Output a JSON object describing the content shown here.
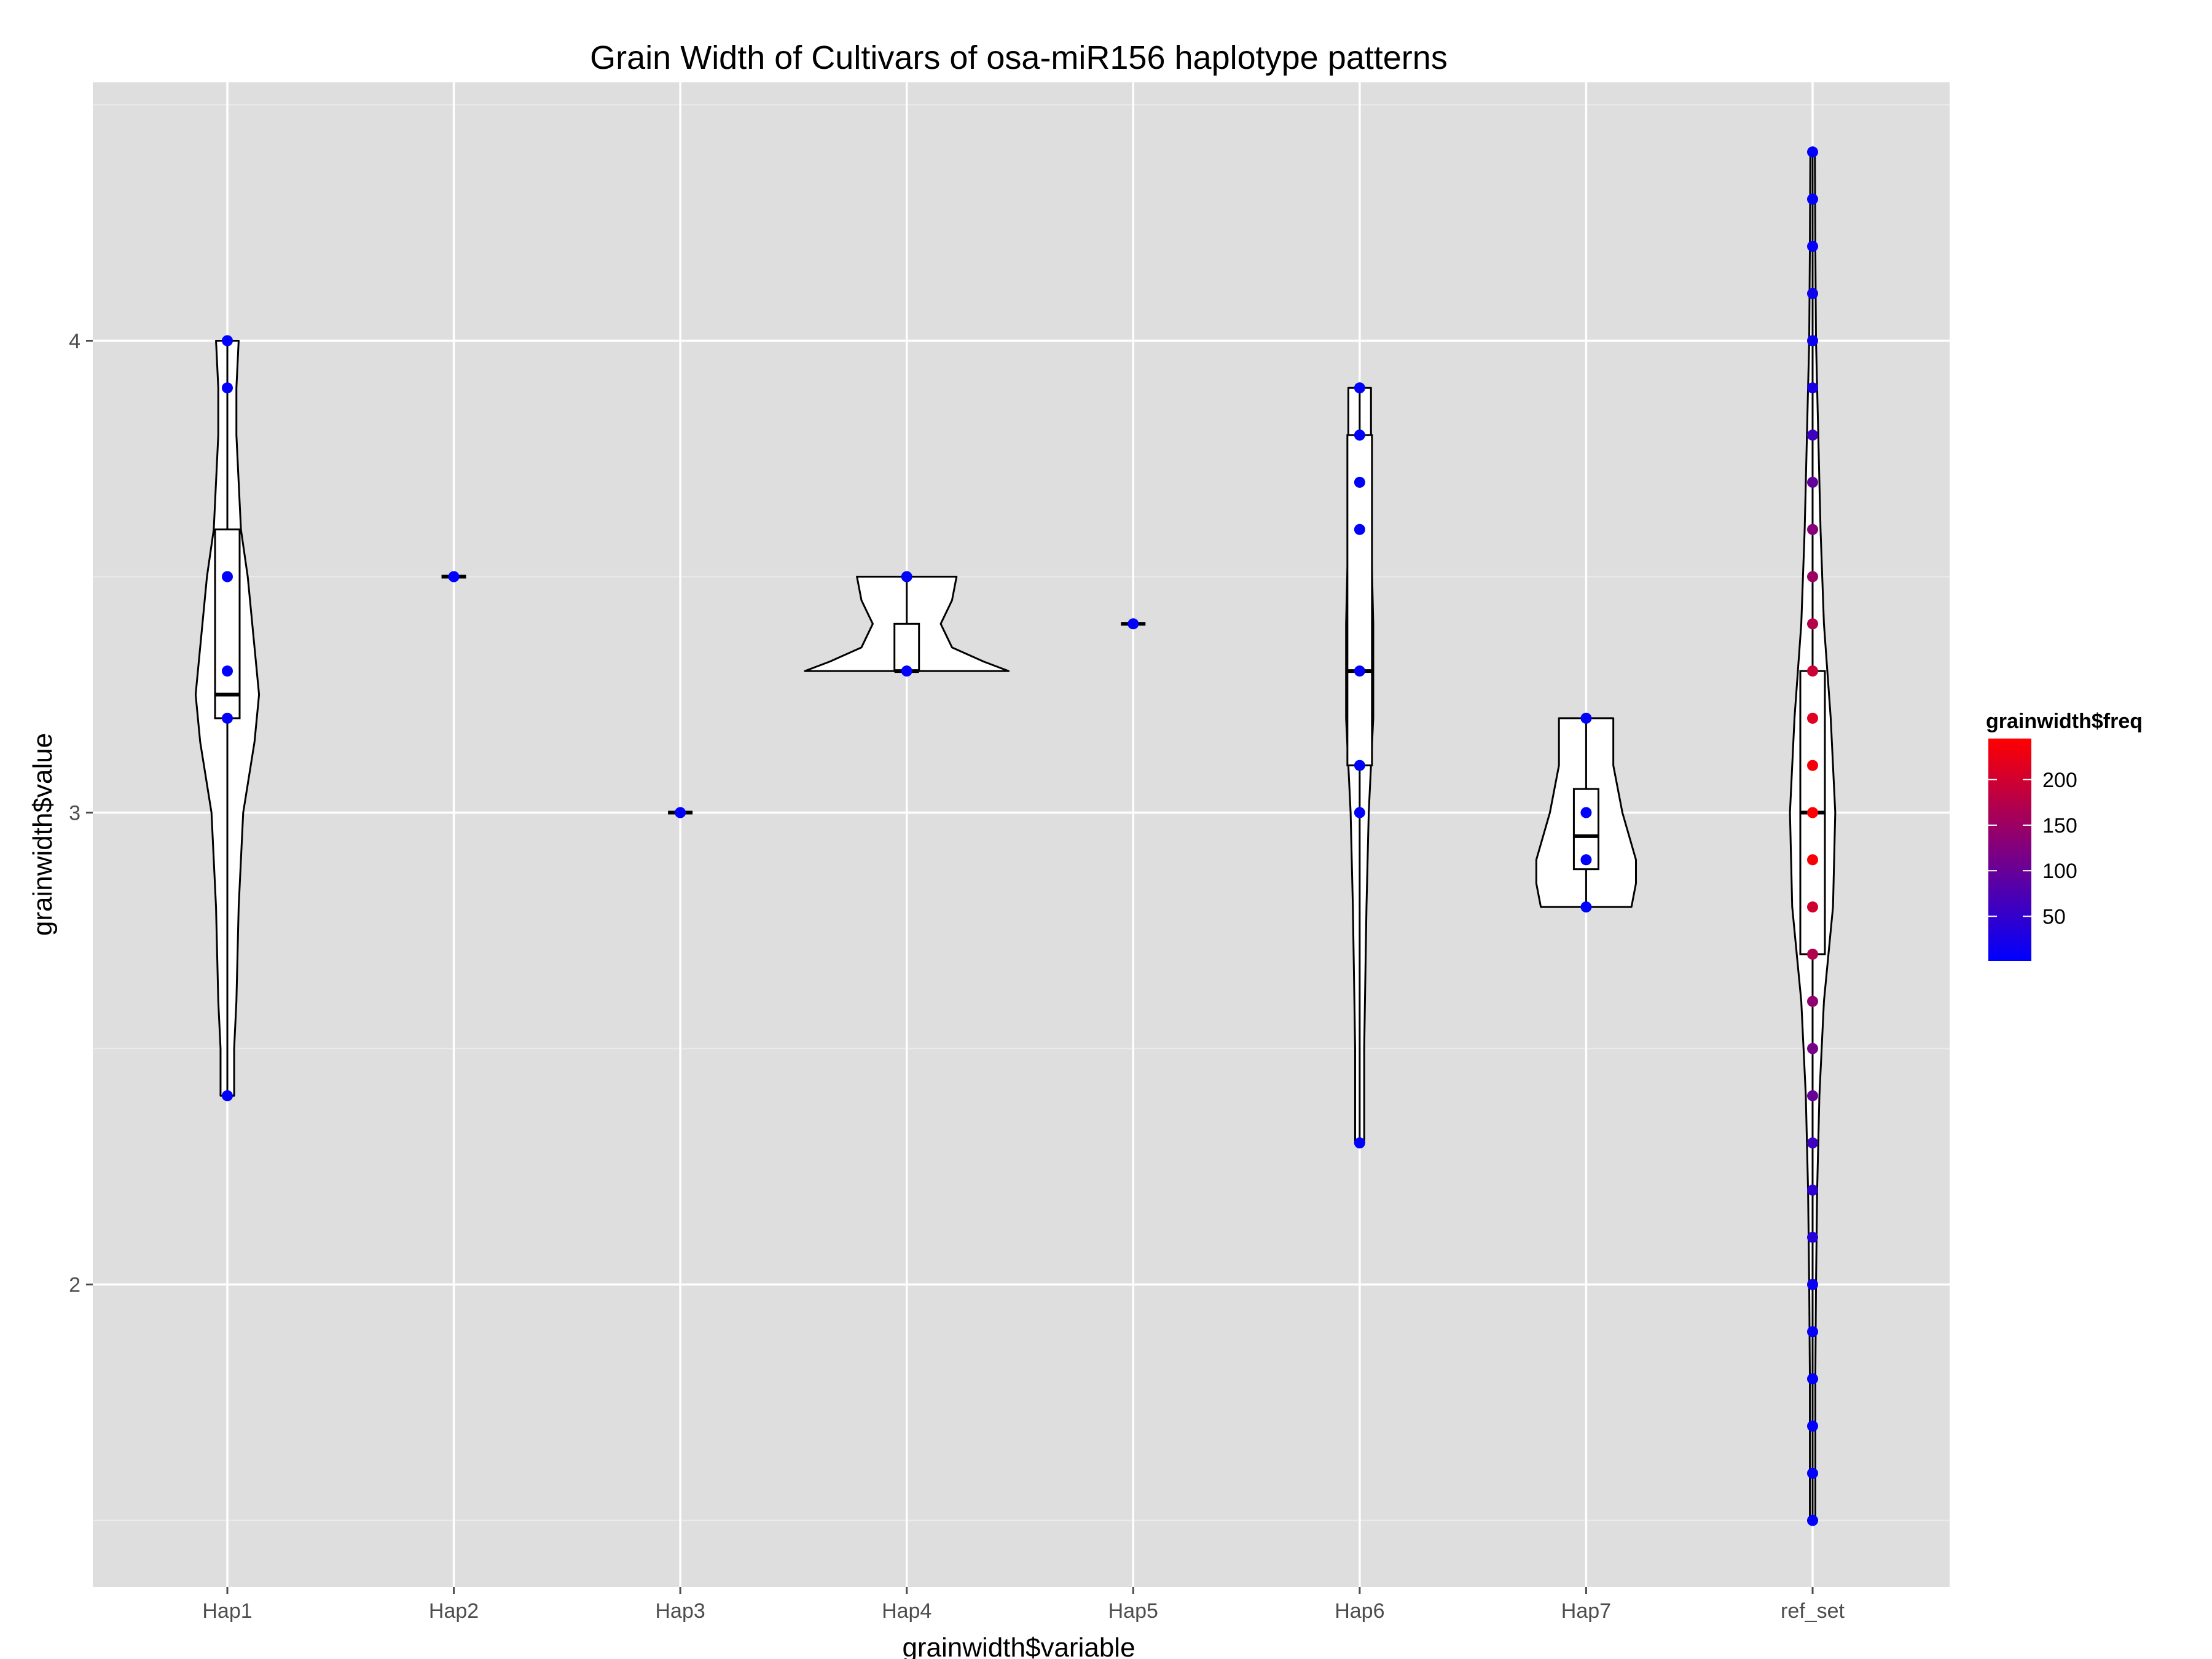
{
  "chart_data": {
    "type": "violin",
    "title": "Grain Width of Cultivars of osa-miR156 haplotype patterns",
    "xlabel": "grainwidth$variable",
    "ylabel": "grainwidth$value",
    "categories": [
      "Hap1",
      "Hap2",
      "Hap3",
      "Hap4",
      "Hap5",
      "Hap6",
      "Hap7",
      "ref_set"
    ],
    "ylim": [
      1.5,
      4.5
    ],
    "yticks": [
      2,
      3,
      4
    ],
    "grid": true,
    "legend": {
      "title": "grainwidth$freq",
      "placement": "right",
      "ticks": [
        50,
        100,
        150,
        200
      ],
      "range": [
        1,
        245
      ],
      "low_color": "#0000FF",
      "high_color": "#FF0000"
    },
    "colors": {
      "panel_bg": "#DEDEDE",
      "grid_major": "#FFFFFF",
      "grid_minor": "#EBEBEB",
      "violin_fill": "#FFFFFF",
      "outline": "#000000"
    },
    "series": [
      {
        "category": "Hap1",
        "box": {
          "q1": 3.2,
          "median": 3.25,
          "q3": 3.6
        },
        "violin": [
          [
            2.4,
            0.03
          ],
          [
            2.5,
            0.03
          ],
          [
            2.6,
            0.04
          ],
          [
            2.8,
            0.05
          ],
          [
            3.0,
            0.07
          ],
          [
            3.15,
            0.12
          ],
          [
            3.25,
            0.14
          ],
          [
            3.4,
            0.11
          ],
          [
            3.5,
            0.09
          ],
          [
            3.6,
            0.06
          ],
          [
            3.8,
            0.04
          ],
          [
            3.9,
            0.04
          ],
          [
            4.0,
            0.05
          ]
        ],
        "points": [
          {
            "y": 4.0,
            "freq": 1
          },
          {
            "y": 3.9,
            "freq": 1
          },
          {
            "y": 3.5,
            "freq": 1
          },
          {
            "y": 3.3,
            "freq": 1
          },
          {
            "y": 3.2,
            "freq": 1
          },
          {
            "y": 2.4,
            "freq": 1
          }
        ]
      },
      {
        "category": "Hap2",
        "box": {
          "q1": 3.5,
          "median": 3.5,
          "q3": 3.5
        },
        "violin": [
          [
            3.5,
            0.1
          ]
        ],
        "points": [
          {
            "y": 3.5,
            "freq": 1
          }
        ]
      },
      {
        "category": "Hap3",
        "box": {
          "q1": 3.0,
          "median": 3.0,
          "q3": 3.0
        },
        "violin": [
          [
            3.0,
            0.1
          ]
        ],
        "points": [
          {
            "y": 3.0,
            "freq": 1
          }
        ]
      },
      {
        "category": "Hap4",
        "box": {
          "q1": 3.3,
          "median": 3.3,
          "q3": 3.4
        },
        "violin": [
          [
            3.3,
            0.45
          ],
          [
            3.32,
            0.34
          ],
          [
            3.35,
            0.2
          ],
          [
            3.4,
            0.15
          ],
          [
            3.45,
            0.2
          ],
          [
            3.5,
            0.22
          ]
        ],
        "points": [
          {
            "y": 3.5,
            "freq": 1
          },
          {
            "y": 3.3,
            "freq": 1
          }
        ]
      },
      {
        "category": "Hap5",
        "box": {
          "q1": 3.4,
          "median": 3.4,
          "q3": 3.4
        },
        "violin": [
          [
            3.4,
            0.1
          ]
        ],
        "points": [
          {
            "y": 3.4,
            "freq": 1
          }
        ]
      },
      {
        "category": "Hap6",
        "box": {
          "q1": 3.1,
          "median": 3.3,
          "q3": 3.8
        },
        "violin": [
          [
            2.3,
            0.02
          ],
          [
            2.5,
            0.02
          ],
          [
            2.8,
            0.03
          ],
          [
            3.0,
            0.04
          ],
          [
            3.2,
            0.06
          ],
          [
            3.4,
            0.06
          ],
          [
            3.6,
            0.05
          ],
          [
            3.8,
            0.05
          ],
          [
            3.9,
            0.05
          ]
        ],
        "points": [
          {
            "y": 3.9,
            "freq": 1
          },
          {
            "y": 3.8,
            "freq": 1
          },
          {
            "y": 3.7,
            "freq": 1
          },
          {
            "y": 3.6,
            "freq": 1
          },
          {
            "y": 3.3,
            "freq": 1
          },
          {
            "y": 3.1,
            "freq": 1
          },
          {
            "y": 3.0,
            "freq": 1
          },
          {
            "y": 2.3,
            "freq": 1
          }
        ]
      },
      {
        "category": "Hap7",
        "box": {
          "q1": 2.88,
          "median": 2.95,
          "q3": 3.05
        },
        "violin": [
          [
            2.8,
            0.2
          ],
          [
            2.85,
            0.22
          ],
          [
            2.9,
            0.22
          ],
          [
            3.0,
            0.16
          ],
          [
            3.1,
            0.12
          ],
          [
            3.2,
            0.12
          ]
        ],
        "points": [
          {
            "y": 3.2,
            "freq": 1
          },
          {
            "y": 3.0,
            "freq": 1
          },
          {
            "y": 2.9,
            "freq": 1
          },
          {
            "y": 2.8,
            "freq": 1
          }
        ]
      },
      {
        "category": "ref_set",
        "box": {
          "q1": 2.7,
          "median": 3.0,
          "q3": 3.3
        },
        "violin": [
          [
            1.5,
            0.012
          ],
          [
            1.8,
            0.012
          ],
          [
            2.0,
            0.015
          ],
          [
            2.2,
            0.02
          ],
          [
            2.4,
            0.03
          ],
          [
            2.6,
            0.05
          ],
          [
            2.8,
            0.09
          ],
          [
            3.0,
            0.1
          ],
          [
            3.2,
            0.08
          ],
          [
            3.4,
            0.05
          ],
          [
            3.6,
            0.035
          ],
          [
            3.8,
            0.025
          ],
          [
            4.0,
            0.015
          ],
          [
            4.2,
            0.012
          ],
          [
            4.4,
            0.01
          ]
        ],
        "points": [
          {
            "y": 4.4,
            "freq": 2
          },
          {
            "y": 4.3,
            "freq": 3
          },
          {
            "y": 4.2,
            "freq": 5
          },
          {
            "y": 4.1,
            "freq": 15
          },
          {
            "y": 4.0,
            "freq": 12
          },
          {
            "y": 3.9,
            "freq": 25
          },
          {
            "y": 3.8,
            "freq": 60
          },
          {
            "y": 3.7,
            "freq": 95
          },
          {
            "y": 3.6,
            "freq": 130
          },
          {
            "y": 3.5,
            "freq": 150
          },
          {
            "y": 3.4,
            "freq": 175
          },
          {
            "y": 3.3,
            "freq": 195
          },
          {
            "y": 3.2,
            "freq": 215
          },
          {
            "y": 3.1,
            "freq": 235
          },
          {
            "y": 3.0,
            "freq": 245
          },
          {
            "y": 2.9,
            "freq": 240
          },
          {
            "y": 2.8,
            "freq": 200
          },
          {
            "y": 2.7,
            "freq": 170
          },
          {
            "y": 2.6,
            "freq": 140
          },
          {
            "y": 2.5,
            "freq": 115
          },
          {
            "y": 2.4,
            "freq": 100
          },
          {
            "y": 2.3,
            "freq": 60
          },
          {
            "y": 2.2,
            "freq": 45
          },
          {
            "y": 2.1,
            "freq": 35
          },
          {
            "y": 2.0,
            "freq": 10
          },
          {
            "y": 1.9,
            "freq": 5
          },
          {
            "y": 1.8,
            "freq": 3
          },
          {
            "y": 1.7,
            "freq": 2
          },
          {
            "y": 1.6,
            "freq": 2
          },
          {
            "y": 1.5,
            "freq": 1
          }
        ]
      }
    ]
  }
}
